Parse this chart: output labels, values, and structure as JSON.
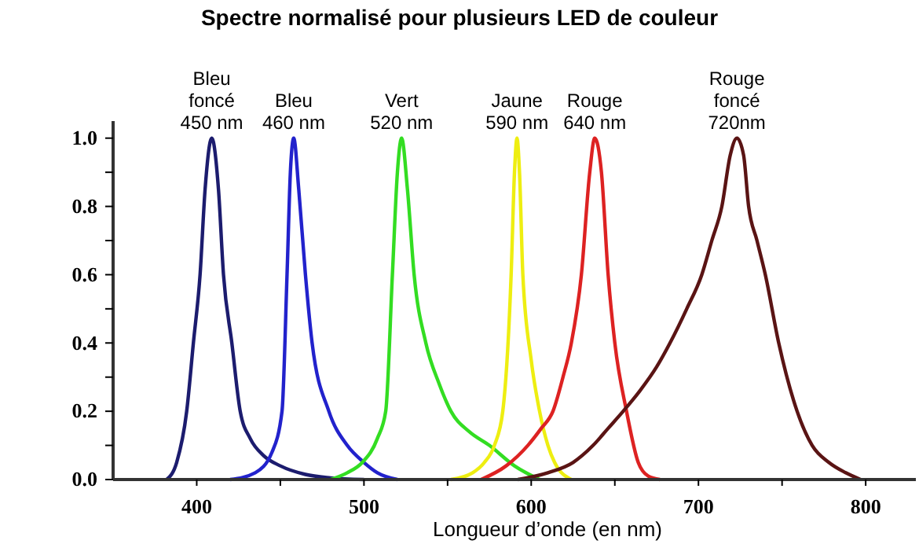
{
  "chart_data": {
    "type": "line",
    "title": "Spectre normalisé pour plusieurs LED de couleur",
    "xlabel": "Longueur d’onde (en nm)",
    "xlim": [
      350,
      830
    ],
    "ylim": [
      0,
      1.05
    ],
    "xticks": [
      400,
      {
        "value": 450,
        "label": null
      },
      500,
      {
        "value": 550,
        "label": null
      },
      600,
      {
        "value": 650,
        "label": null
      },
      700,
      {
        "value": 750,
        "label": null
      },
      800
    ],
    "yticks": [
      {
        "value": 0,
        "label": "0.0"
      },
      {
        "value": 0.1,
        "label": null
      },
      {
        "value": 0.2,
        "label": "0.2"
      },
      {
        "value": 0.3,
        "label": null
      },
      {
        "value": 0.4,
        "label": "0.4"
      },
      {
        "value": 0.5,
        "label": null
      },
      {
        "value": 0.6,
        "label": "0.6"
      },
      {
        "value": 0.7,
        "label": null
      },
      {
        "value": 0.8,
        "label": "0.8"
      },
      {
        "value": 0.9,
        "label": null
      },
      {
        "value": 1,
        "label": "1.0"
      }
    ],
    "grid": false,
    "legend": false,
    "marker": "none",
    "line_style": "solid",
    "series": [
      {
        "name": "Bleu\nfoncé\n450 nm",
        "color": "#1c1c6e",
        "x": [
          382,
          388,
          394,
          398,
          402,
          405,
          409,
          413,
          416,
          421,
          426,
          432,
          440,
          450,
          465,
          480,
          500
        ],
        "values": [
          0,
          0.05,
          0.2,
          0.4,
          0.6,
          0.85,
          1,
          0.85,
          0.6,
          0.4,
          0.2,
          0.12,
          0.07,
          0.04,
          0.015,
          0.005,
          0
        ]
      },
      {
        "name": "Bleu\n460 nm",
        "color": "#2222cc",
        "x": [
          420,
          435,
          445,
          451,
          454,
          456,
          458,
          461,
          465,
          469,
          479,
          490,
          500,
          508,
          520
        ],
        "values": [
          0,
          0.02,
          0.08,
          0.2,
          0.6,
          0.9,
          1,
          0.85,
          0.6,
          0.4,
          0.2,
          0.1,
          0.05,
          0.02,
          0
        ]
      },
      {
        "name": "Vert\n520 nm",
        "color": "#33dd22",
        "x": [
          480,
          490,
          499,
          508,
          513,
          517,
          520,
          522.5,
          526,
          530,
          537,
          545,
          552,
          563,
          575,
          590,
          605
        ],
        "values": [
          0,
          0.02,
          0.05,
          0.12,
          0.2,
          0.6,
          0.9,
          1,
          0.85,
          0.6,
          0.4,
          0.28,
          0.2,
          0.14,
          0.1,
          0.04,
          0
        ]
      },
      {
        "name": "Jaune\n590 nm",
        "color": "#eeee11",
        "x": [
          552,
          565,
          572,
          578,
          583,
          588,
          590,
          591.5,
          593,
          595,
          600,
          605,
          610,
          614,
          624
        ],
        "values": [
          0,
          0.02,
          0.05,
          0.1,
          0.2,
          0.6,
          0.9,
          1,
          0.9,
          0.6,
          0.35,
          0.2,
          0.1,
          0.05,
          0
        ]
      },
      {
        "name": "Rouge\n640 nm",
        "color": "#dd2222",
        "x": [
          570,
          585,
          598,
          606,
          613,
          619,
          624,
          630,
          635,
          638,
          642,
          646,
          650,
          657,
          664,
          670,
          677
        ],
        "values": [
          0,
          0.04,
          0.1,
          0.15,
          0.2,
          0.3,
          0.4,
          0.6,
          0.9,
          1,
          0.9,
          0.6,
          0.4,
          0.2,
          0.05,
          0.01,
          0
        ]
      },
      {
        "name": "Rouge\nfoncé\n720nm",
        "color": "#5a1414",
        "x": [
          592,
          610,
          625,
          637,
          646,
          655,
          665,
          675,
          683,
          693,
          702,
          708,
          714,
          719,
          723,
          727,
          730,
          735,
          740,
          748,
          759,
          768,
          778,
          788,
          797
        ],
        "values": [
          0,
          0.02,
          0.05,
          0.1,
          0.15,
          0.2,
          0.26,
          0.33,
          0.4,
          0.5,
          0.6,
          0.7,
          0.8,
          0.95,
          1,
          0.95,
          0.8,
          0.7,
          0.6,
          0.4,
          0.2,
          0.1,
          0.05,
          0.02,
          0
        ]
      }
    ]
  }
}
